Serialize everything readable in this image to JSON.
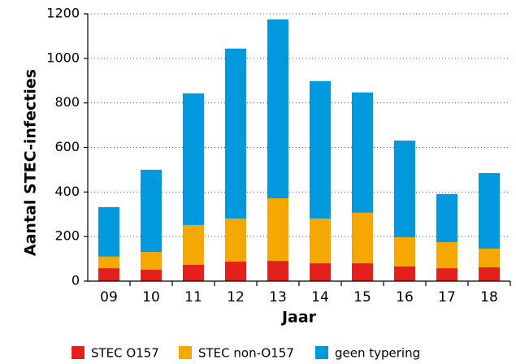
{
  "chart_data": {
    "type": "stacked_bar",
    "xlabel": "Jaar",
    "ylabel": "Aantal STEC-infecties",
    "categories": [
      "09",
      "10",
      "11",
      "12",
      "13",
      "14",
      "15",
      "16",
      "17",
      "18"
    ],
    "series": [
      {
        "name": "STEC O157",
        "color": "#e3201b",
        "values": [
          58,
          52,
          73,
          88,
          91,
          80,
          80,
          66,
          58,
          62
        ]
      },
      {
        "name": "STEC non-O157",
        "color": "#f5a800",
        "values": [
          52,
          79,
          179,
          193,
          281,
          201,
          227,
          131,
          117,
          84
        ]
      },
      {
        "name": "geen typering",
        "color": "#0099dd",
        "values": [
          222,
          369,
          591,
          763,
          803,
          617,
          540,
          434,
          216,
          339
        ]
      }
    ],
    "ylim": [
      0,
      1200
    ],
    "yticks": [
      0,
      200,
      400,
      600,
      800,
      1000,
      1200
    ],
    "grid": true
  }
}
